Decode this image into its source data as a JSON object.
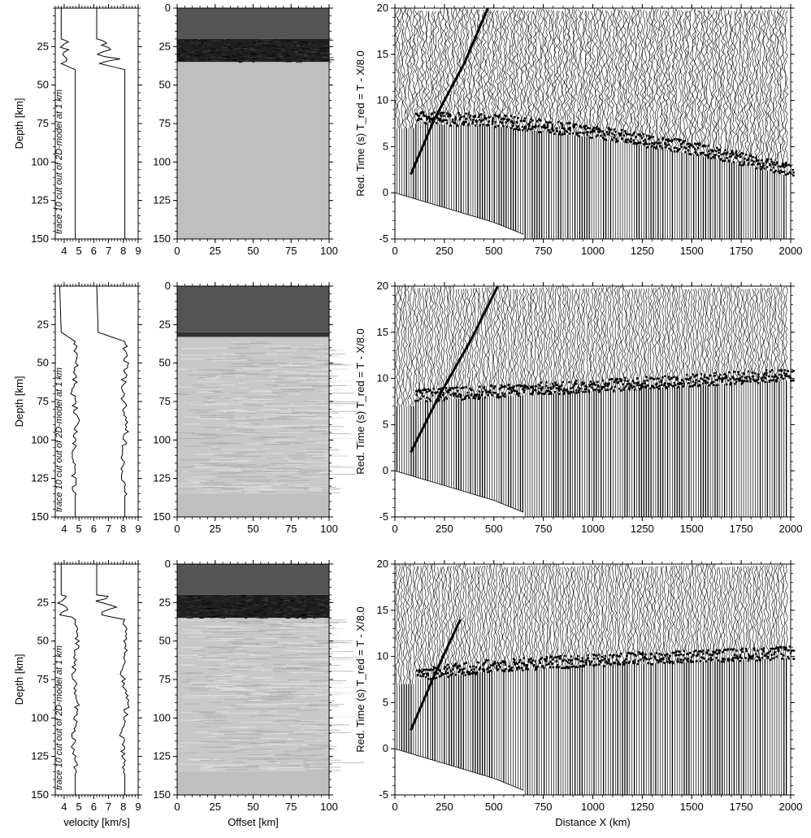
{
  "chart_data": [
    {
      "type": "line",
      "panel": "velocity-profile",
      "row": 1,
      "ylabel": "Depth [km]",
      "xlabel": "",
      "annotation": "trace 10 cut out of 2D-model at 1 km",
      "x_ticks": [
        4,
        5,
        6,
        7,
        8,
        9
      ],
      "y_ticks": [
        25,
        50,
        75,
        100,
        125,
        150
      ],
      "xlim": [
        3.4,
        9.0
      ],
      "ylim": [
        150,
        0
      ],
      "series": [
        {
          "points": [
            [
              4.75,
              150
            ],
            [
              4.75,
              40
            ],
            [
              3.8,
              36
            ],
            [
              4.3,
              33
            ],
            [
              3.6,
              30
            ],
            [
              4.2,
              27
            ],
            [
              3.7,
              24
            ],
            [
              4.1,
              22
            ],
            [
              3.8,
              20
            ],
            [
              3.8,
              0
            ]
          ]
        },
        {
          "points": [
            [
              8.1,
              150
            ],
            [
              8.1,
              40
            ],
            [
              6.4,
              36
            ],
            [
              7.6,
              33
            ],
            [
              6.2,
              30
            ],
            [
              7.3,
              27
            ],
            [
              6.3,
              24
            ],
            [
              7.0,
              22
            ],
            [
              6.2,
              20
            ],
            [
              6.2,
              0
            ]
          ]
        }
      ]
    },
    {
      "type": "heatmap",
      "panel": "model",
      "row": 1,
      "xlabel": "",
      "x_ticks": [
        0,
        25,
        50,
        75,
        100
      ],
      "y_ticks": [
        0,
        25,
        50,
        75,
        100,
        125,
        150
      ],
      "xlim": [
        0,
        100
      ],
      "ylim": [
        150,
        0
      ],
      "layers": [
        {
          "from": 0,
          "to": 20,
          "color": "#555555"
        },
        {
          "from": 20,
          "to": 35,
          "color": "#1f1f1f"
        },
        {
          "from": 35,
          "to": 150,
          "color": "#bfbfbf"
        }
      ],
      "texture": "rough-crust"
    },
    {
      "type": "scatter",
      "panel": "seismogram",
      "row": 1,
      "ylabel": "Red. Time (s)  T_red = T - X/8.0",
      "xlabel": "",
      "x_ticks": [
        0,
        250,
        500,
        750,
        1000,
        1250,
        1500,
        1750,
        2000
      ],
      "y_ticks": [
        -5,
        0,
        5,
        10,
        15,
        20
      ],
      "xlim": [
        0,
        2000
      ],
      "ylim": [
        -5,
        20
      ],
      "first_arrival_onset": [
        [
          0,
          0
        ],
        [
          250,
          -1.6
        ],
        [
          500,
          -3.2
        ],
        [
          650,
          -4.5
        ]
      ],
      "direct_phase": [
        [
          80,
          2
        ],
        [
          200,
          8
        ],
        [
          350,
          14
        ],
        [
          470,
          20
        ]
      ],
      "reflection": [
        [
          100,
          7.5
        ],
        [
          500,
          7.2
        ],
        [
          1000,
          6
        ],
        [
          1500,
          4.2
        ],
        [
          1800,
          2.8
        ],
        [
          2000,
          1.8
        ]
      ],
      "density": "high"
    },
    {
      "type": "line",
      "panel": "velocity-profile",
      "row": 2,
      "ylabel": "Depth [km]",
      "xlabel": "",
      "annotation": "trace 10 cut out of 2D-model at 1 km",
      "x_ticks": [
        4,
        5,
        6,
        7,
        8,
        9
      ],
      "y_ticks": [
        25,
        50,
        75,
        100,
        125,
        150
      ],
      "xlim": [
        3.4,
        9.0
      ],
      "ylim": [
        150,
        0
      ],
      "series": [
        {
          "points": [
            [
              4.75,
              150
            ],
            [
              4.75,
              135
            ],
            [
              4.6,
              110
            ],
            [
              4.9,
              90
            ],
            [
              4.6,
              70
            ],
            [
              4.9,
              50
            ],
            [
              4.75,
              36
            ],
            [
              3.8,
              30
            ],
            [
              3.7,
              0
            ]
          ]
        },
        {
          "points": [
            [
              8.1,
              150
            ],
            [
              8.1,
              135
            ],
            [
              7.9,
              110
            ],
            [
              8.3,
              90
            ],
            [
              7.9,
              70
            ],
            [
              8.2,
              50
            ],
            [
              8.1,
              36
            ],
            [
              6.3,
              30
            ],
            [
              6.2,
              0
            ]
          ]
        }
      ]
    },
    {
      "type": "heatmap",
      "panel": "model",
      "row": 2,
      "xlabel": "",
      "x_ticks": [
        0,
        25,
        50,
        75,
        100
      ],
      "y_ticks": [
        0,
        25,
        50,
        75,
        100,
        125,
        150
      ],
      "xlim": [
        0,
        100
      ],
      "ylim": [
        150,
        0
      ],
      "layers": [
        {
          "from": 0,
          "to": 30,
          "color": "#555555"
        },
        {
          "from": 30,
          "to": 33,
          "color": "#333333"
        },
        {
          "from": 33,
          "to": 135,
          "color": "#c8c8c8"
        },
        {
          "from": 135,
          "to": 150,
          "color": "#bfbfbf"
        }
      ],
      "texture": "rough-mantle"
    },
    {
      "type": "scatter",
      "panel": "seismogram",
      "row": 2,
      "ylabel": "Red. Time (s)  T_red = T - X/8.0",
      "xlabel": "",
      "x_ticks": [
        0,
        250,
        500,
        750,
        1000,
        1250,
        1500,
        1750,
        2000
      ],
      "y_ticks": [
        -5,
        0,
        5,
        10,
        15,
        20
      ],
      "xlim": [
        0,
        2000
      ],
      "ylim": [
        -5,
        20
      ],
      "first_arrival_onset": [
        [
          0,
          0
        ],
        [
          250,
          -1.6
        ],
        [
          500,
          -3.2
        ],
        [
          650,
          -4.5
        ]
      ],
      "direct_phase": [
        [
          80,
          2
        ],
        [
          220,
          8
        ],
        [
          380,
          14
        ],
        [
          520,
          20
        ]
      ],
      "reflection": [
        [
          100,
          7.5
        ],
        [
          500,
          8
        ],
        [
          1000,
          8.6
        ],
        [
          1500,
          9.2
        ],
        [
          2000,
          9.8
        ]
      ],
      "density": "medium"
    },
    {
      "type": "line",
      "panel": "velocity-profile",
      "row": 3,
      "ylabel": "Depth [km]",
      "xlabel": "velocity [km/s]",
      "annotation": "trace 10 cut out of 2D-model at 1 km",
      "x_ticks": [
        4,
        5,
        6,
        7,
        8,
        9
      ],
      "y_ticks": [
        25,
        50,
        75,
        100,
        125,
        150
      ],
      "xlim": [
        3.4,
        9.0
      ],
      "ylim": [
        150,
        0
      ],
      "series": [
        {
          "points": [
            [
              4.75,
              150
            ],
            [
              4.75,
              135
            ],
            [
              4.6,
              110
            ],
            [
              4.9,
              90
            ],
            [
              4.6,
              70
            ],
            [
              4.9,
              50
            ],
            [
              4.75,
              36
            ],
            [
              3.8,
              33
            ],
            [
              4.2,
              28
            ],
            [
              3.7,
              24
            ],
            [
              4.1,
              21
            ],
            [
              3.8,
              20
            ],
            [
              3.8,
              0
            ]
          ]
        },
        {
          "points": [
            [
              8.1,
              150
            ],
            [
              8.1,
              135
            ],
            [
              7.9,
              110
            ],
            [
              8.3,
              90
            ],
            [
              7.9,
              70
            ],
            [
              8.2,
              50
            ],
            [
              8.1,
              36
            ],
            [
              6.4,
              33
            ],
            [
              7.4,
              28
            ],
            [
              6.3,
              24
            ],
            [
              7.0,
              21
            ],
            [
              6.2,
              20
            ],
            [
              6.2,
              0
            ]
          ]
        }
      ]
    },
    {
      "type": "heatmap",
      "panel": "model",
      "row": 3,
      "xlabel": "Offset [km]",
      "x_ticks": [
        0,
        25,
        50,
        75,
        100
      ],
      "y_ticks": [
        0,
        25,
        50,
        75,
        100,
        125,
        150
      ],
      "xlim": [
        0,
        100
      ],
      "ylim": [
        150,
        0
      ],
      "layers": [
        {
          "from": 0,
          "to": 20,
          "color": "#555555"
        },
        {
          "from": 20,
          "to": 35,
          "color": "#1f1f1f"
        },
        {
          "from": 35,
          "to": 135,
          "color": "#c8c8c8"
        },
        {
          "from": 135,
          "to": 150,
          "color": "#bfbfbf"
        }
      ],
      "texture": "rough-crust-and-mantle"
    },
    {
      "type": "scatter",
      "panel": "seismogram",
      "row": 3,
      "ylabel": "Red. Time (s)  T_red = T - X/8.0",
      "xlabel": "Distance X (km)",
      "x_ticks": [
        0,
        250,
        500,
        750,
        1000,
        1250,
        1500,
        1750,
        2000
      ],
      "y_ticks": [
        -5,
        0,
        5,
        10,
        15,
        20
      ],
      "xlim": [
        0,
        2000
      ],
      "ylim": [
        -5,
        20
      ],
      "first_arrival_onset": [
        [
          0,
          0
        ],
        [
          250,
          -1.6
        ],
        [
          500,
          -3.2
        ],
        [
          650,
          -4.5
        ]
      ],
      "direct_phase": [
        [
          80,
          2
        ],
        [
          200,
          8
        ],
        [
          330,
          14
        ]
      ],
      "reflection": [
        [
          100,
          7.5
        ],
        [
          500,
          8.4
        ],
        [
          1000,
          9
        ],
        [
          1500,
          9.4
        ],
        [
          2000,
          9.8
        ]
      ],
      "density": "medium"
    }
  ]
}
